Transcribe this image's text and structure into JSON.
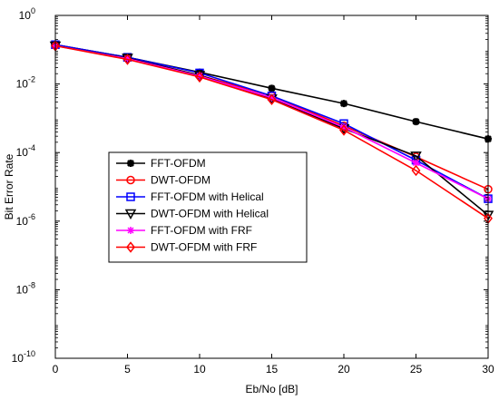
{
  "chart_data": {
    "type": "line",
    "title": "",
    "xlabel": "Eb/No [dB]",
    "ylabel": "Bit Error Rate",
    "xlim": [
      0,
      30
    ],
    "ylim": [
      1e-10,
      1
    ],
    "yscale": "log",
    "grid": false,
    "legend_position": "center-left",
    "x": [
      0,
      5,
      10,
      15,
      20,
      25,
      30
    ],
    "x_ticks": [
      "0",
      "5",
      "10",
      "15",
      "20",
      "25",
      "30"
    ],
    "y_ticks": [
      {
        "base": "10",
        "exp": "0",
        "value": 1
      },
      {
        "base": "10",
        "exp": "-2",
        "value": 0.01
      },
      {
        "base": "10",
        "exp": "-4",
        "value": 0.0001
      },
      {
        "base": "10",
        "exp": "-6",
        "value": 1e-06
      },
      {
        "base": "10",
        "exp": "-8",
        "value": 1e-08
      },
      {
        "base": "10",
        "exp": "-10",
        "value": 1e-10
      }
    ],
    "series": [
      {
        "name": "FFT-OFDM",
        "color": "#000000",
        "marker": "asterisk",
        "values": [
          0.14,
          0.06,
          0.022,
          0.0075,
          0.0027,
          0.0008,
          0.00025
        ]
      },
      {
        "name": "DWT-OFDM",
        "color": "#ff0000",
        "marker": "circle",
        "values": [
          0.14,
          0.058,
          0.018,
          0.0045,
          0.0006,
          7.5e-05,
          8.5e-06
        ]
      },
      {
        "name": "FFT-OFDM with Helical",
        "color": "#0000ff",
        "marker": "square",
        "values": [
          0.14,
          0.06,
          0.021,
          0.0045,
          0.0007,
          6e-05,
          4.5e-06
        ]
      },
      {
        "name": "DWT-OFDM with Helical",
        "color": "#000000",
        "marker": "triangle-down",
        "values": [
          0.13,
          0.057,
          0.018,
          0.0037,
          0.0005,
          8e-05,
          1.5e-06
        ]
      },
      {
        "name": "FFT-OFDM with FRF",
        "color": "#ff00ff",
        "marker": "star",
        "values": [
          0.13,
          0.055,
          0.017,
          0.004,
          0.00055,
          5e-05,
          4.5e-06
        ]
      },
      {
        "name": "DWT-OFDM with FRF",
        "color": "#ff0000",
        "marker": "diamond",
        "values": [
          0.13,
          0.052,
          0.016,
          0.0035,
          0.00045,
          3e-05,
          1.2e-06
        ]
      }
    ]
  }
}
